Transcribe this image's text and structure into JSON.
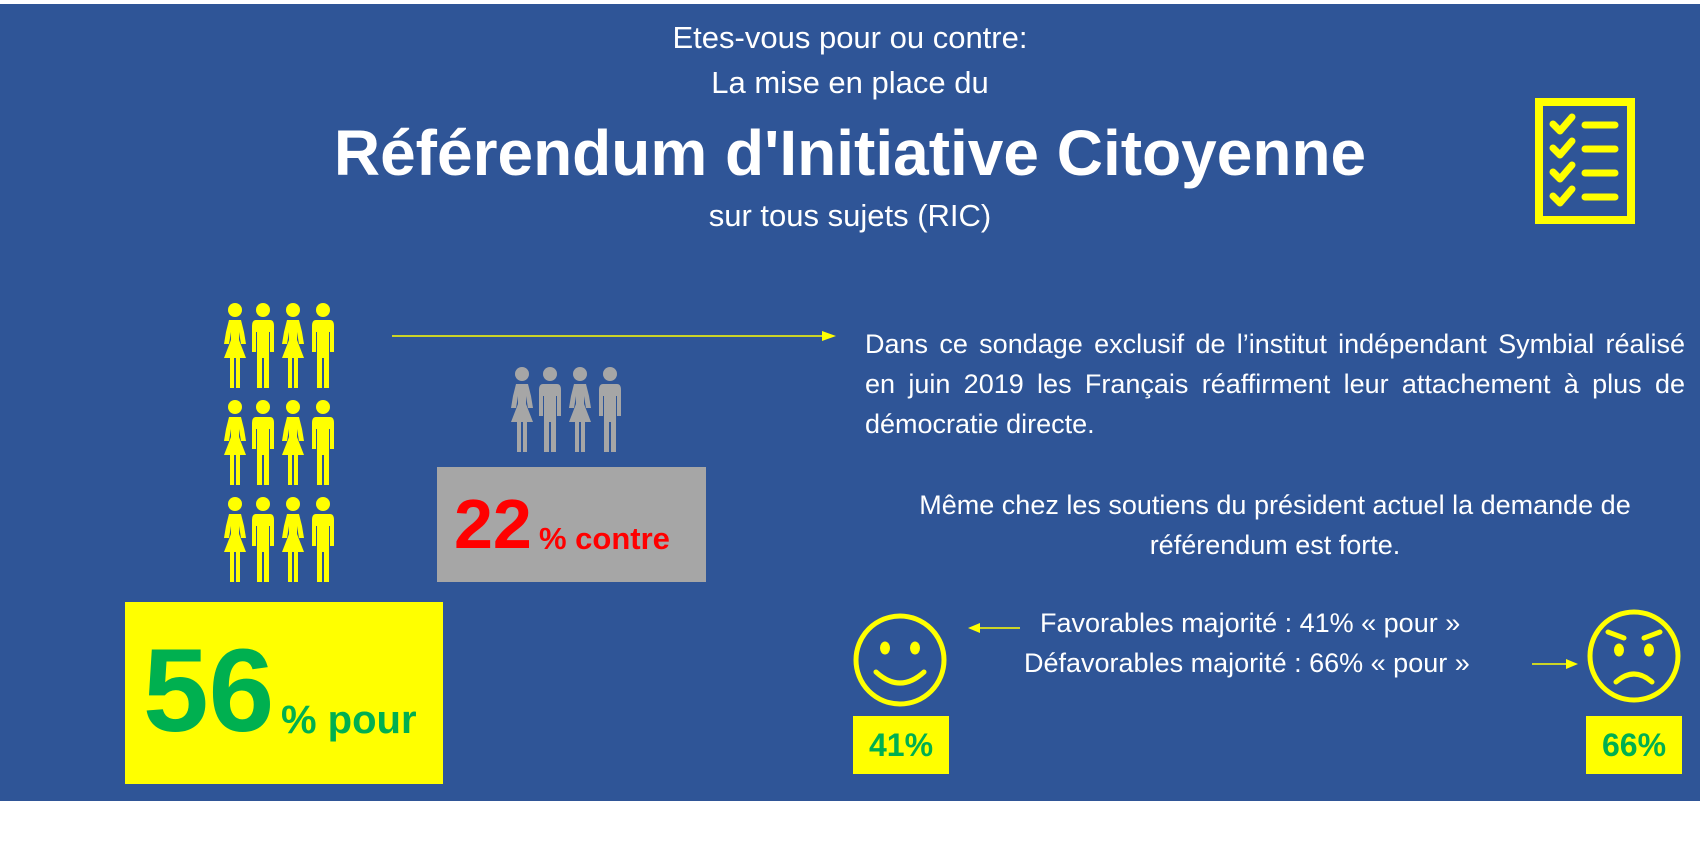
{
  "header": {
    "question_line1": "Etes-vous pour ou contre:",
    "question_line2": "La mise en place du",
    "title": "Référendum d'Initiative Citoyenne",
    "subtitle": "sur tous sujets (RIC)"
  },
  "pour": {
    "value": "56",
    "label": "% pour",
    "color": "#00b050"
  },
  "contre": {
    "value": "22",
    "label": "% contre",
    "color": "#ff0000"
  },
  "description": {
    "paragraph1": "Dans ce sondage exclusif de l’institut indépendant Symbial réalisé en juin 2019 les Français réaffirment leur attachement à plus de démocratie directe.",
    "paragraph2": "Même chez les soutiens du président actuel la demande de référendum est forte."
  },
  "breakdown": {
    "favorable_text": "Favorables majorité : 41% « pour »",
    "defavorable_text": "Défavorables majorité : 66% « pour »",
    "favorable_value": "41%",
    "defavorable_value": "66%"
  },
  "colors": {
    "background": "#2f5597",
    "accent_yellow": "#ffff00",
    "green": "#00b050",
    "red": "#ff0000",
    "gray": "#a6a6a6"
  },
  "icons": {
    "checklist": "checklist-icon",
    "people_pour": "people-group-icon",
    "people_contre": "people-group-icon",
    "happy_face": "smiley-icon",
    "unhappy_face": "frowning-face-icon"
  }
}
